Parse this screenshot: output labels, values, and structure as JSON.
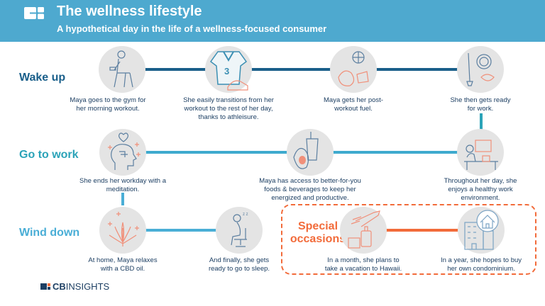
{
  "header": {
    "title": "The wellness lifestyle",
    "subtitle": "A hypothetical day in the life of a wellness-focused consumer"
  },
  "colors": {
    "header": "#4ea9cf",
    "wake_up": "#1a5f8a",
    "go_to_work": "#2ba3b8",
    "wind_down": "#4aaed6",
    "special": "#f26b3a"
  },
  "rows": {
    "wake_up": "Wake up",
    "go_to_work": "Go to work",
    "wind_down": "Wind down",
    "special": "Special occasions"
  },
  "steps": {
    "gym": "Maya goes to the gym for her morning workout.",
    "athleisure": "She easily transitions from her workout to the rest of her day, thanks to athleisure.",
    "fuel": "Maya gets her post-workout fuel.",
    "ready": "She then gets ready for work.",
    "environment": "Throughout her day, she enjoys a healthy work environment.",
    "foods": "Maya has access to better-for-you foods & beverages to keep her energized and productive.",
    "meditation": "She ends her workday with a meditation.",
    "cbd": "At home, Maya relaxes with a CBD oil.",
    "sleep": "And finally, she gets ready to go to sleep.",
    "vacation": "In a month, she plans to take a vacation to Hawaii.",
    "condo": "In a year, she hopes to buy her own condominium."
  },
  "footer": {
    "brand_cb": "CB",
    "brand_insights": "INSIGHTS"
  }
}
